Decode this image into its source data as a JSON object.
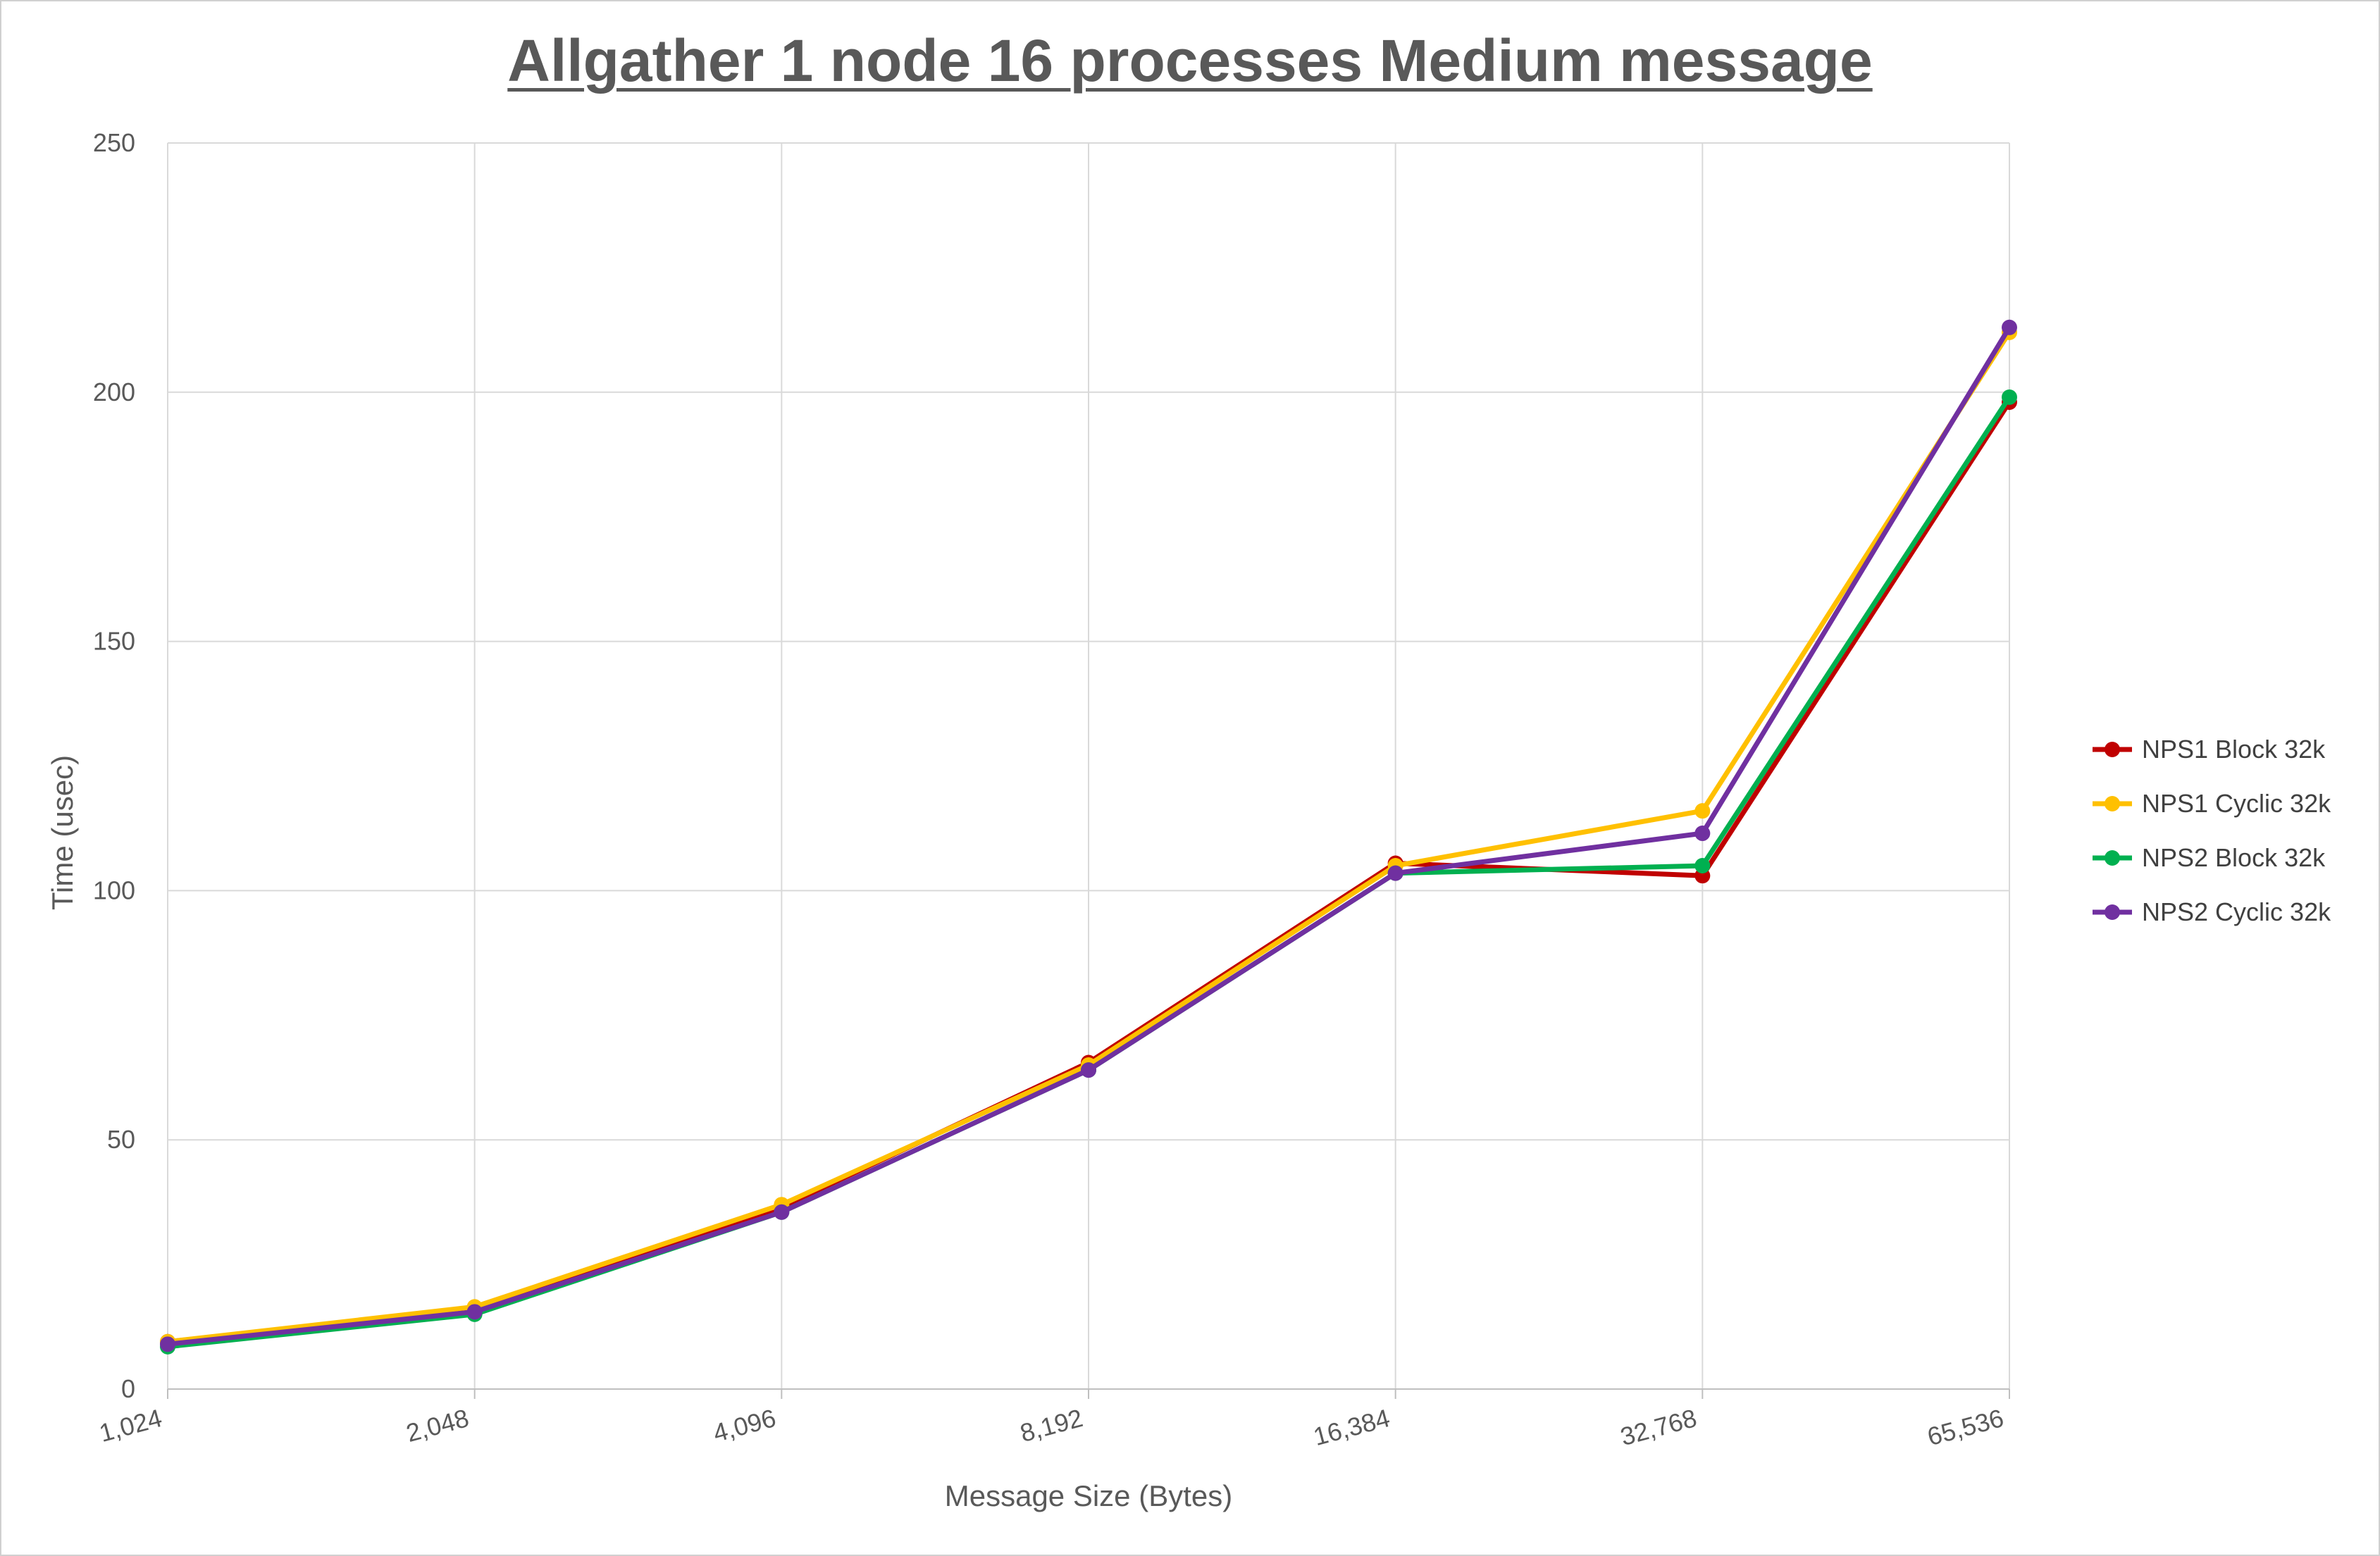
{
  "chart_data": {
    "type": "line",
    "title": "Allgather 1 node 16 processes Medium message",
    "xlabel": "Message Size (Bytes)",
    "ylabel": "Time (usec)",
    "categories": [
      "1,024",
      "2,048",
      "4,096",
      "8,192",
      "16,384",
      "32,768",
      "65,536"
    ],
    "ylim": [
      0,
      250
    ],
    "yticks": [
      0,
      50,
      100,
      150,
      200,
      250
    ],
    "grid": true,
    "legend_position": "right",
    "series": [
      {
        "name": "NPS1 Block 32k",
        "color": "#C00000",
        "values": [
          9.5,
          16.0,
          36.5,
          65.5,
          105.5,
          103.0,
          198.0
        ]
      },
      {
        "name": "NPS1 Cyclic 32k",
        "color": "#FFC000",
        "values": [
          9.5,
          16.5,
          37.0,
          65.0,
          105.0,
          116.0,
          212.0
        ]
      },
      {
        "name": "NPS2 Block 32k",
        "color": "#00B050",
        "values": [
          8.5,
          15.0,
          35.5,
          64.0,
          103.5,
          105.0,
          199.0
        ]
      },
      {
        "name": "NPS2 Cyclic 32k",
        "color": "#7030A0",
        "values": [
          9.0,
          15.5,
          35.5,
          64.0,
          103.5,
          111.5,
          213.0
        ]
      }
    ]
  }
}
